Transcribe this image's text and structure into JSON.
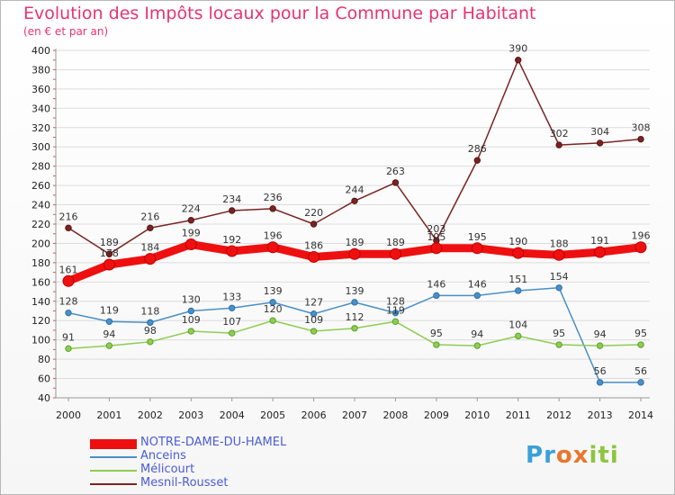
{
  "title": "Evolution des Impôts locaux pour la Commune par Habitant",
  "subtitle": "(en € et par an)",
  "logo": {
    "letters": [
      "P",
      "r",
      "o",
      "x",
      "i",
      "t",
      "i"
    ],
    "colors": [
      "#3aa0d8",
      "#3aa0d8",
      "#e8772e",
      "#e8772e",
      "#8cc63f",
      "#8cc63f",
      "#8cc63f"
    ]
  },
  "chart_data": {
    "type": "line",
    "title": "Evolution des Impôts locaux pour la Commune par Habitant",
    "ylabel": "(en € et par an)",
    "xlabel": "",
    "ylim": [
      40,
      400
    ],
    "yticks": [
      40,
      60,
      80,
      100,
      120,
      140,
      160,
      180,
      200,
      220,
      240,
      260,
      280,
      300,
      320,
      340,
      360,
      380,
      400
    ],
    "categories": [
      "2000",
      "2001",
      "2002",
      "2003",
      "2004",
      "2005",
      "2006",
      "2007",
      "2008",
      "2009",
      "2010",
      "2011",
      "2012",
      "2013",
      "2014"
    ],
    "legend_position": "bottom-left",
    "series": [
      {
        "name": "NOTRE-DAME-DU-HAMEL",
        "color": "#ee1010",
        "values": [
          161,
          178,
          184,
          199,
          192,
          196,
          186,
          189,
          189,
          195,
          195,
          190,
          188,
          191,
          196
        ],
        "labels": [
          "161",
          "178",
          "184",
          "199",
          "192",
          "196",
          "186",
          "189",
          "189",
          "195",
          "195",
          "190",
          "188",
          "191",
          "196"
        ]
      },
      {
        "name": "Anceins",
        "color": "#4a90c8",
        "values": [
          128,
          119,
          118,
          130,
          133,
          139,
          127,
          139,
          128,
          146,
          146,
          151,
          154,
          56,
          56
        ],
        "labels": [
          "128",
          "119",
          "118",
          "130",
          "133",
          "139",
          "127",
          "139",
          "128",
          "146",
          "146",
          "151",
          "154",
          "56",
          "56"
        ]
      },
      {
        "name": "Mélicourt",
        "color": "#8fcc52",
        "values": [
          91,
          94,
          98,
          109,
          107,
          120,
          109,
          112,
          119,
          95,
          94,
          104,
          95,
          94,
          95
        ],
        "labels": [
          "91",
          "94",
          "98",
          "109",
          "107",
          "120",
          "109",
          "112",
          "119",
          "95",
          "94",
          "104",
          "95",
          "94",
          "95"
        ]
      },
      {
        "name": "Mesnil-Rousset",
        "color": "#7a2323",
        "values": [
          216,
          189,
          216,
          224,
          234,
          236,
          220,
          244,
          263,
          203,
          286,
          390,
          302,
          304,
          308
        ],
        "labels": [
          "216",
          "189",
          "216",
          "224",
          "234",
          "236",
          "220",
          "244",
          "263",
          "203",
          "286",
          "390",
          "302",
          "304",
          "308"
        ]
      }
    ]
  }
}
